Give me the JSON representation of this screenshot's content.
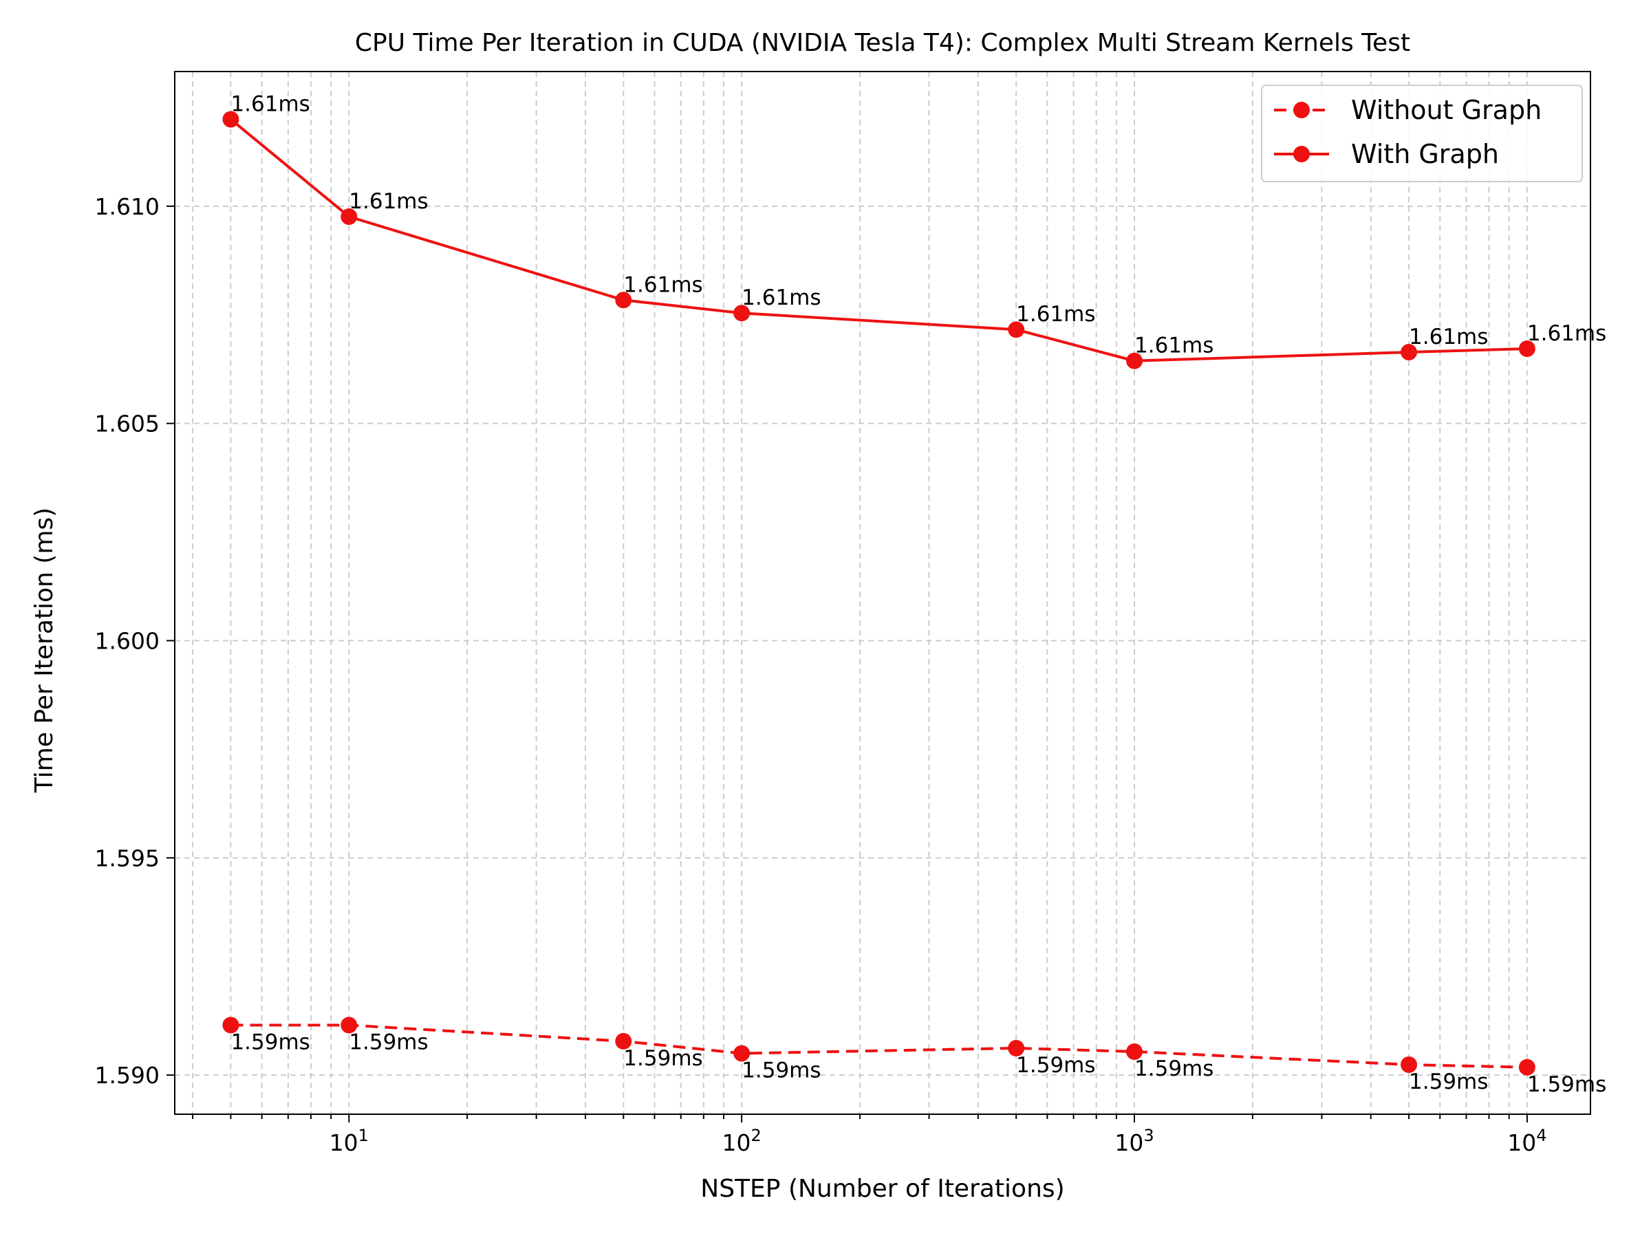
{
  "chart_data": {
    "type": "line",
    "title": "CPU Time Per Iteration in CUDA (NVIDIA Tesla T4): Complex Multi Stream Kernels Test",
    "xlabel": "NSTEP (Number of Iterations)",
    "ylabel": "Time Per Iteration (ms)",
    "x_scale": "log",
    "xlim": [
      3.6,
      14500
    ],
    "ylim": [
      1.5891,
      1.6131
    ],
    "x_ticks": [
      10,
      100,
      1000,
      10000
    ],
    "x_tick_labels": [
      {
        "base": "10",
        "exp": "1"
      },
      {
        "base": "10",
        "exp": "2"
      },
      {
        "base": "10",
        "exp": "3"
      },
      {
        "base": "10",
        "exp": "4"
      }
    ],
    "y_ticks": [
      1.59,
      1.595,
      1.6,
      1.605,
      1.61
    ],
    "y_tick_labels": [
      "1.590",
      "1.595",
      "1.600",
      "1.605",
      "1.610"
    ],
    "grid": true,
    "legend_position": "top-right",
    "x": [
      5,
      10,
      50,
      100,
      500,
      1000,
      5000,
      10000
    ],
    "series": [
      {
        "name": "Without Graph",
        "style": "dashed",
        "color": "#ee1111",
        "values": [
          1.59115,
          1.59115,
          1.59078,
          1.5905,
          1.59062,
          1.59054,
          1.59024,
          1.59018
        ],
        "labels": [
          "1.59ms",
          "1.59ms",
          "1.59ms",
          "1.59ms",
          "1.59ms",
          "1.59ms",
          "1.59ms",
          "1.59ms"
        ]
      },
      {
        "name": "With Graph",
        "style": "solid",
        "color": "#ee1111",
        "values": [
          1.612,
          1.60976,
          1.60784,
          1.60754,
          1.60716,
          1.60644,
          1.60664,
          1.60672
        ],
        "labels": [
          "1.61ms",
          "1.61ms",
          "1.61ms",
          "1.61ms",
          "1.61ms",
          "1.61ms",
          "1.61ms",
          "1.61ms"
        ]
      }
    ]
  }
}
